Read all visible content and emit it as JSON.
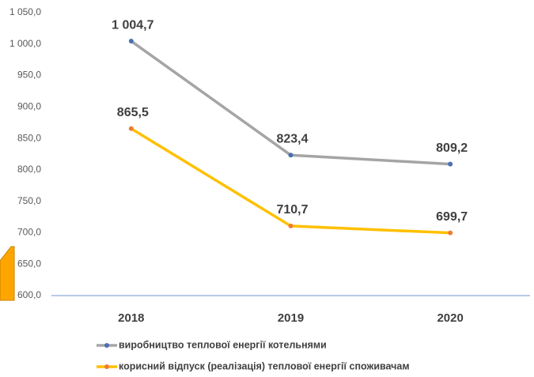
{
  "chart_data": {
    "type": "line",
    "categories": [
      "2018",
      "2019",
      "2020"
    ],
    "series": [
      {
        "name": "виробництво теплової енергії котельнями",
        "color": "#a5a5a5",
        "marker_color": "#4a6fb3",
        "values": [
          1004.7,
          823.4,
          809.2
        ],
        "value_labels": [
          "1 004,7",
          "823,4",
          "809,2"
        ]
      },
      {
        "name": "корисний відпуск (реалізація) теплової енергії споживачам",
        "color": "#ffc000",
        "marker_color": "#ed7d31",
        "values": [
          865.5,
          710.7,
          699.7
        ],
        "value_labels": [
          "865,5",
          "710,7",
          "699,7"
        ]
      }
    ],
    "ylim": [
      600,
      1050
    ],
    "yticks": [
      {
        "value": 600,
        "label": "600,0"
      },
      {
        "value": 650,
        "label": "650,0"
      },
      {
        "value": 700,
        "label": "700,0"
      },
      {
        "value": 750,
        "label": "750,0"
      },
      {
        "value": 800,
        "label": "800,0"
      },
      {
        "value": 850,
        "label": "850,0"
      },
      {
        "value": 900,
        "label": "900,0"
      },
      {
        "value": 950,
        "label": "950,0"
      },
      {
        "value": 1000,
        "label": "1 000,0"
      },
      {
        "value": 1050,
        "label": "1 050,0"
      }
    ],
    "grid": false
  }
}
